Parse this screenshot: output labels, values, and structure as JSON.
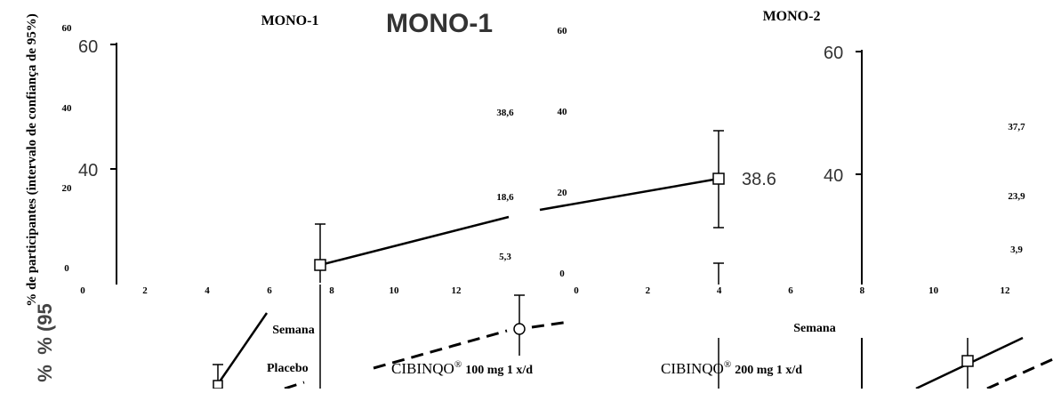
{
  "ylabel": "% de participantes (intervalo de confiança de 95%)",
  "ylabel_fragments": [
    "% (95",
    "%"
  ],
  "legend": {
    "placebo": "Placebo",
    "dose100": "CIBINQO",
    "dose100_suffix": "100 mg 1 x/d",
    "dose200": "CIBINQO",
    "dose200_suffix": "200 mg 1 x/d",
    "registered_mark": "®"
  },
  "colors": {
    "line": "#000000",
    "background": "#ffffff",
    "gray_text": "#333333"
  },
  "chart_data": [
    {
      "type": "line",
      "title": "MONO-1",
      "xlabel": "Semana",
      "ylabel": "% de participantes (intervalo de confiança de 95%)",
      "x_ticks": [
        "0",
        "2",
        "4",
        "6",
        "8",
        "10",
        "12"
      ],
      "y_ticks": [
        "0",
        "20",
        "40",
        "60"
      ],
      "xlim": [
        0,
        12
      ],
      "ylim": [
        0,
        60
      ],
      "value_labels": [
        "38,6",
        "18,6",
        "5,3"
      ],
      "background_fragment": {
        "title": "MONO-1",
        "y_ticks": [
          "60",
          "40"
        ],
        "point_label": "38.6"
      }
    },
    {
      "type": "line",
      "title": "MONO-2",
      "xlabel": "Semana",
      "x_ticks": [
        "0",
        "2",
        "4",
        "6",
        "8",
        "10",
        "12"
      ],
      "y_ticks": [
        "0",
        "20",
        "40",
        "60"
      ],
      "xlim": [
        0,
        12
      ],
      "ylim": [
        0,
        60
      ],
      "value_labels": [
        "37,7",
        "23,9",
        "3,9"
      ],
      "background_fragment": {
        "y_ticks": [
          "60",
          "40"
        ]
      }
    }
  ]
}
